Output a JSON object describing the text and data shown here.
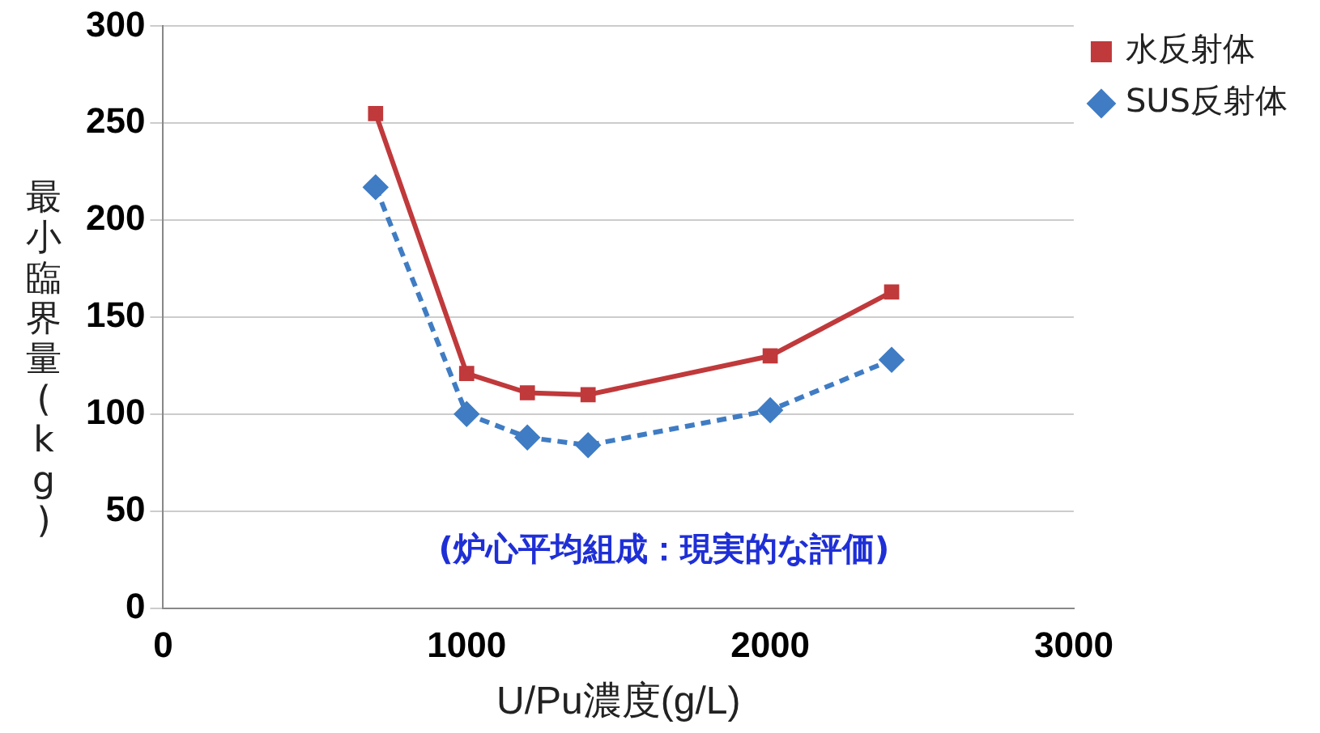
{
  "chart_data": {
    "type": "line",
    "xlabel": "U/Pu濃度(g/L)",
    "ylabel": "最小臨界量(kg)",
    "x": [
      700,
      1000,
      1200,
      1400,
      2000,
      2400
    ],
    "series": [
      {
        "name": "水反射体",
        "color": "#c0393b",
        "values": [
          255,
          121,
          111,
          110,
          130,
          163
        ],
        "marker": "square",
        "line_style": "solid"
      },
      {
        "name": "SUS反射体",
        "color": "#3f7cc4",
        "values": [
          217,
          100,
          88,
          84,
          102,
          128
        ],
        "marker": "diamond",
        "line_style": "dashed"
      }
    ],
    "xlim": [
      0,
      3000
    ],
    "xticks": [
      0,
      1000,
      2000,
      3000
    ],
    "ylim": [
      0,
      300
    ],
    "yticks": [
      0,
      50,
      100,
      150,
      200,
      250,
      300
    ],
    "grid": "y",
    "legend": "right",
    "annotations": [
      "(炉心平均組成：現実的な評価)"
    ]
  }
}
